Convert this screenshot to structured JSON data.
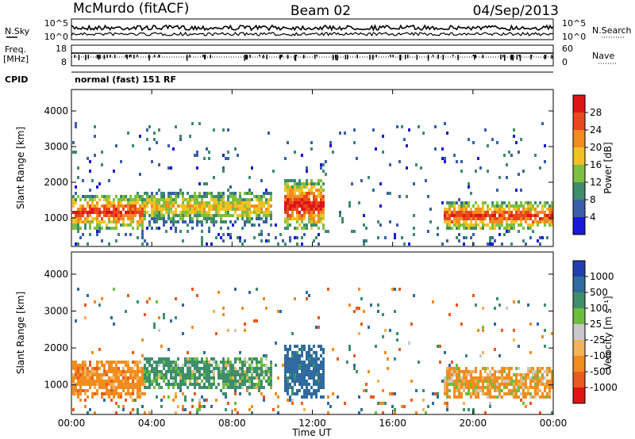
{
  "header": {
    "station": "McMurdo (fitACF)",
    "beam": "Beam 02",
    "date": "04/Sep/2013"
  },
  "top_panels": {
    "noise_left_label": "N.Sky",
    "noise_right_label": "N.Search",
    "noise_left_ticks": [
      "10^5",
      "10^0"
    ],
    "noise_right_ticks": [
      "10^5",
      "10^0"
    ],
    "freq_label_1": "Freq.",
    "freq_label_2": "[MHz]",
    "freq_ticks": [
      "18",
      "8"
    ],
    "nave_label": "Nave",
    "nave_ticks": [
      "60",
      "0"
    ],
    "cpid_label": "CPID",
    "cpid_text": "normal (fast) 151 RF"
  },
  "chart_data": [
    {
      "type": "heatmap",
      "name": "power",
      "ylabel": "Slant Range [km]",
      "y_ticks": [
        "1000",
        "2000",
        "3000",
        "4000"
      ],
      "ylim": [
        200,
        4600
      ],
      "colorbar": {
        "label": "Power [dB]",
        "ticks": [
          "4",
          "8",
          "12",
          "16",
          "20",
          "24",
          "28"
        ],
        "range": [
          0,
          32
        ],
        "colors": [
          "#1a1ad6",
          "#3a5fa8",
          "#3e8c6a",
          "#7fbf3f",
          "#f2c224",
          "#f28c1e",
          "#e8481e",
          "#dd1515"
        ]
      },
      "echo_bands": [
        {
          "t0": 0.0,
          "t1": 3.5,
          "low_km": 700,
          "high_km": 1700,
          "peak_db": 28
        },
        {
          "t0": 3.5,
          "t1": 10.0,
          "low_km": 900,
          "high_km": 1800,
          "peak_db": 20
        },
        {
          "t0": 10.5,
          "t1": 12.5,
          "low_km": 700,
          "high_km": 2100,
          "peak_db": 30
        },
        {
          "t0": 18.5,
          "t1": 24.0,
          "low_km": 700,
          "high_km": 1500,
          "peak_db": 28
        }
      ]
    },
    {
      "type": "heatmap",
      "name": "velocity",
      "ylabel": "Slant Range [km]",
      "xlabel": "Time UT",
      "x_ticks": [
        "00:00",
        "04:00",
        "08:00",
        "12:00",
        "16:00",
        "20:00",
        "00:00"
      ],
      "y_ticks": [
        "1000",
        "2000",
        "3000",
        "4000"
      ],
      "ylim": [
        200,
        4600
      ],
      "colorbar": {
        "label": "Velocity [m s⁻¹]",
        "ticks": [
          "1000",
          "500",
          "100",
          "25",
          "-25",
          "-100",
          "-500",
          "-1000"
        ],
        "colors": [
          "#1f3fb0",
          "#2f6b9e",
          "#3e8f6a",
          "#6cbf3c",
          "#c9c9c9",
          "#f2b25a",
          "#f28c1e",
          "#ea5a1e",
          "#e01414"
        ]
      },
      "echo_bands": [
        {
          "t0": 0.0,
          "t1": 3.5,
          "low_km": 700,
          "high_km": 1700,
          "velocity": -300
        },
        {
          "t0": 3.5,
          "t1": 10.0,
          "low_km": 900,
          "high_km": 1800,
          "velocity": 200
        },
        {
          "t0": 10.5,
          "t1": 12.5,
          "low_km": 700,
          "high_km": 2100,
          "velocity": 700
        },
        {
          "t0": 18.5,
          "t1": 24.0,
          "low_km": 700,
          "high_km": 1500,
          "velocity": -150
        }
      ]
    }
  ]
}
